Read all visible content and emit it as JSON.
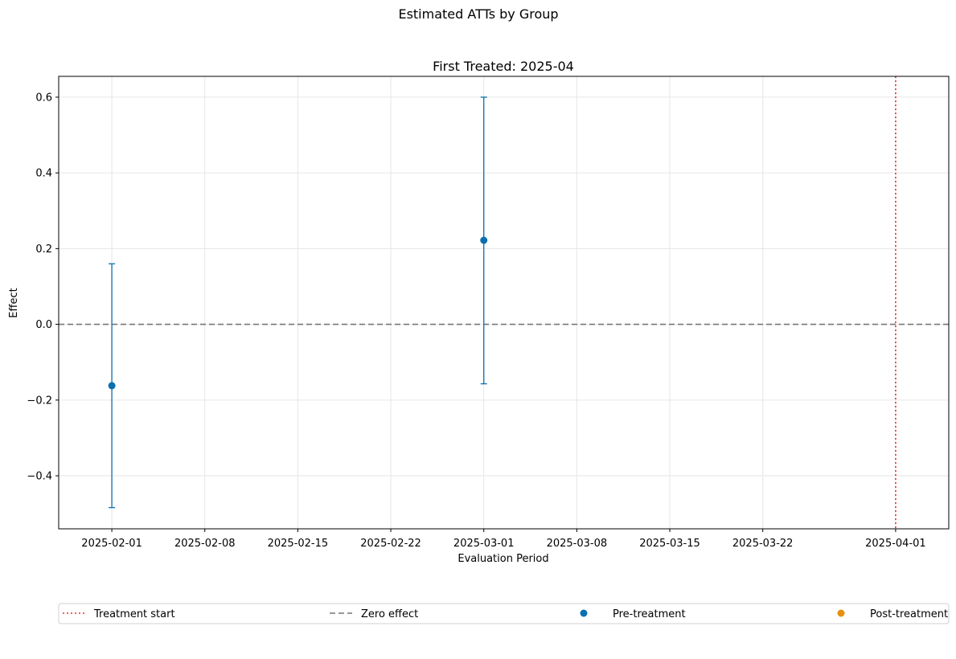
{
  "chart_data": {
    "type": "scatter",
    "suptitle": "Estimated ATTs by Group",
    "title": "First Treated: 2025-04",
    "xlabel": "Evaluation Period",
    "ylabel": "Effect",
    "x_ticks": [
      "2025-02-01",
      "2025-02-08",
      "2025-02-15",
      "2025-02-22",
      "2025-03-01",
      "2025-03-08",
      "2025-03-15",
      "2025-03-22",
      "2025-04-01"
    ],
    "y_ticks": [
      0.6,
      0.4,
      0.2,
      0.0,
      -0.2,
      -0.4
    ],
    "y_tick_labels": [
      "0.6",
      "0.4",
      "0.2",
      "0.0",
      "−0.2",
      "−0.4"
    ],
    "xlim": [
      "2025-01-28",
      "2025-04-05"
    ],
    "ylim": [
      -0.54,
      0.655
    ],
    "grid": true,
    "series": [
      {
        "name": "Pre-treatment",
        "color": "#0b6fb0",
        "points": [
          {
            "x": "2025-02-01",
            "y": -0.162,
            "ci_low": -0.484,
            "ci_high": 0.16
          },
          {
            "x": "2025-03-01",
            "y": 0.222,
            "ci_low": -0.157,
            "ci_high": 0.6
          }
        ]
      },
      {
        "name": "Post-treatment",
        "color": "#e69010",
        "points": []
      }
    ],
    "reference_lines": [
      {
        "kind": "vertical",
        "x": "2025-04-01",
        "label": "Treatment start",
        "color": "#e8312b",
        "style": "dotted"
      },
      {
        "kind": "horizontal",
        "y": 0.0,
        "label": "Zero effect",
        "color": "#777777",
        "style": "dashed"
      }
    ],
    "legend": {
      "placement": "bottom",
      "entries": [
        {
          "label": "Treatment start",
          "marker": "dotted-line",
          "color": "#e8312b"
        },
        {
          "label": "Zero effect",
          "marker": "dashed-line",
          "color": "#777777"
        },
        {
          "label": "Pre-treatment",
          "marker": "dot",
          "color": "#0b6fb0"
        },
        {
          "label": "Post-treatment",
          "marker": "dot",
          "color": "#e69010"
        }
      ]
    }
  }
}
